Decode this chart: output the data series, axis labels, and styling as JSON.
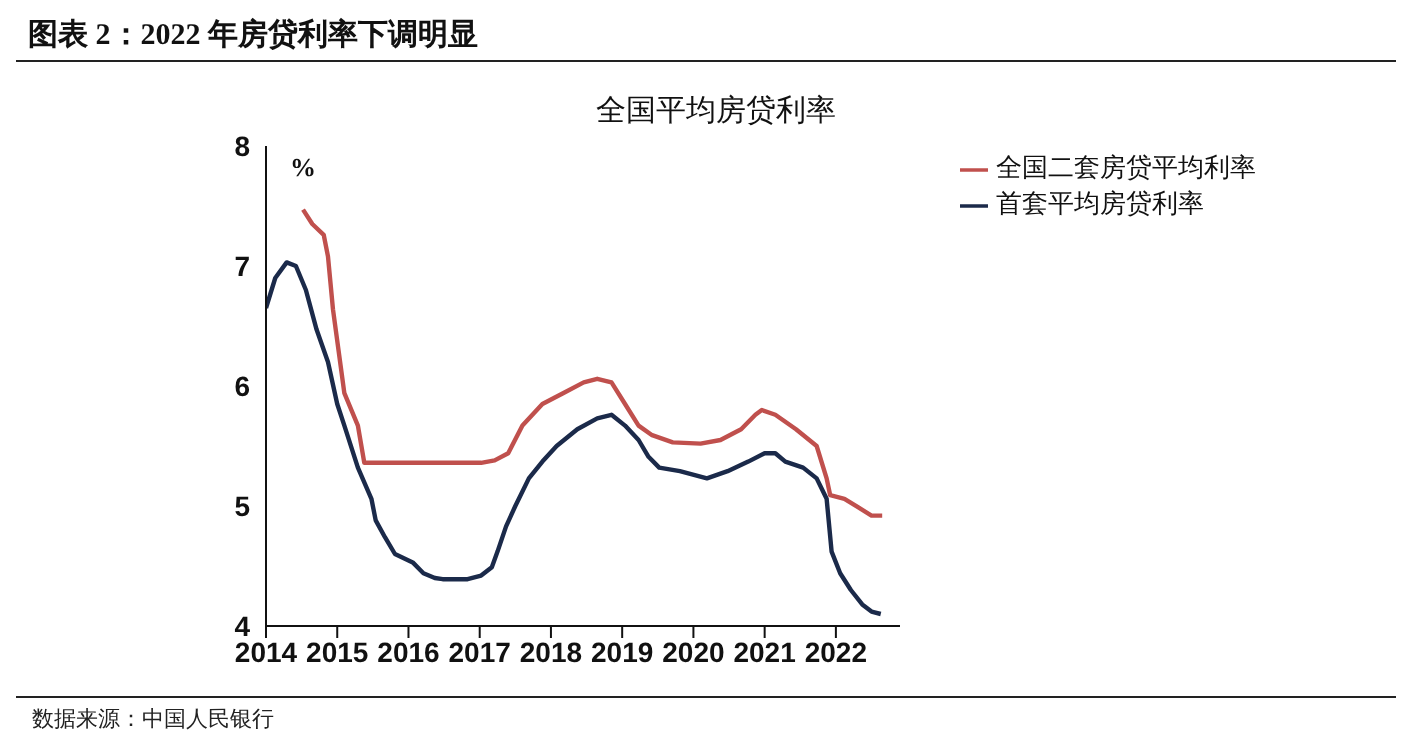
{
  "chart_data": {
    "type": "line",
    "title": "图表 2：2022 年房贷利率下调明显",
    "subtitle": "全国平均房贷利率",
    "ylabel": "%",
    "annotations": [
      "数据来源：中国人民银行"
    ],
    "xlim": [
      2014,
      2022.9
    ],
    "xticks": [
      2014,
      2015,
      2016,
      2017,
      2018,
      2019,
      2020,
      2021,
      2022
    ],
    "ylim": [
      4,
      8
    ],
    "yticks": [
      4,
      5,
      6,
      7,
      8
    ],
    "grid": false,
    "legend": "top right",
    "marker": "none",
    "line_style": "solid",
    "series": [
      {
        "name": "首套平均房贷利率",
        "color": "#1b2a4a",
        "x": [
          2014.0,
          2014.13,
          2014.29,
          2014.42,
          2014.56,
          2014.71,
          2014.87,
          2015.0,
          2015.1,
          2015.29,
          2015.48,
          2015.54,
          2015.67,
          2015.81,
          2016.06,
          2016.21,
          2016.37,
          2016.48,
          2016.83,
          2017.02,
          2017.17,
          2017.25,
          2017.37,
          2017.5,
          2017.69,
          2017.88,
          2018.08,
          2018.37,
          2018.65,
          2018.85,
          2019.04,
          2019.23,
          2019.37,
          2019.52,
          2019.81,
          2020.19,
          2020.48,
          2020.77,
          2021.0,
          2021.15,
          2021.29,
          2021.54,
          2021.73,
          2021.87,
          2021.94,
          2022.06,
          2022.21,
          2022.37,
          2022.5,
          2022.63
        ],
        "values": [
          6.65,
          6.9,
          7.03,
          7.0,
          6.8,
          6.47,
          6.2,
          5.85,
          5.67,
          5.32,
          5.06,
          4.88,
          4.74,
          4.6,
          4.53,
          4.44,
          4.4,
          4.39,
          4.39,
          4.42,
          4.49,
          4.62,
          4.83,
          5.0,
          5.23,
          5.37,
          5.5,
          5.64,
          5.73,
          5.76,
          5.67,
          5.55,
          5.41,
          5.32,
          5.29,
          5.23,
          5.29,
          5.37,
          5.44,
          5.44,
          5.37,
          5.32,
          5.23,
          5.06,
          4.62,
          4.44,
          4.3,
          4.18,
          4.12,
          4.1
        ]
      },
      {
        "name": "全国二套房贷平均利率",
        "color": "#c0504d",
        "x": [
          2014.52,
          2014.65,
          2014.81,
          2014.87,
          2014.94,
          2015.1,
          2015.29,
          2015.38,
          2015.67,
          2016.25,
          2017.02,
          2017.21,
          2017.4,
          2017.6,
          2017.88,
          2018.17,
          2018.46,
          2018.65,
          2018.85,
          2019.04,
          2019.23,
          2019.42,
          2019.71,
          2020.1,
          2020.38,
          2020.67,
          2020.87,
          2020.96,
          2021.15,
          2021.44,
          2021.73,
          2021.87,
          2021.92,
          2022.12,
          2022.31,
          2022.5,
          2022.65
        ],
        "values": [
          7.47,
          7.35,
          7.26,
          7.08,
          6.64,
          5.94,
          5.67,
          5.36,
          5.36,
          5.36,
          5.36,
          5.38,
          5.44,
          5.67,
          5.85,
          5.94,
          6.03,
          6.06,
          6.03,
          5.85,
          5.67,
          5.59,
          5.53,
          5.52,
          5.55,
          5.64,
          5.76,
          5.8,
          5.76,
          5.64,
          5.5,
          5.23,
          5.09,
          5.06,
          4.99,
          4.92,
          4.92
        ]
      }
    ]
  }
}
